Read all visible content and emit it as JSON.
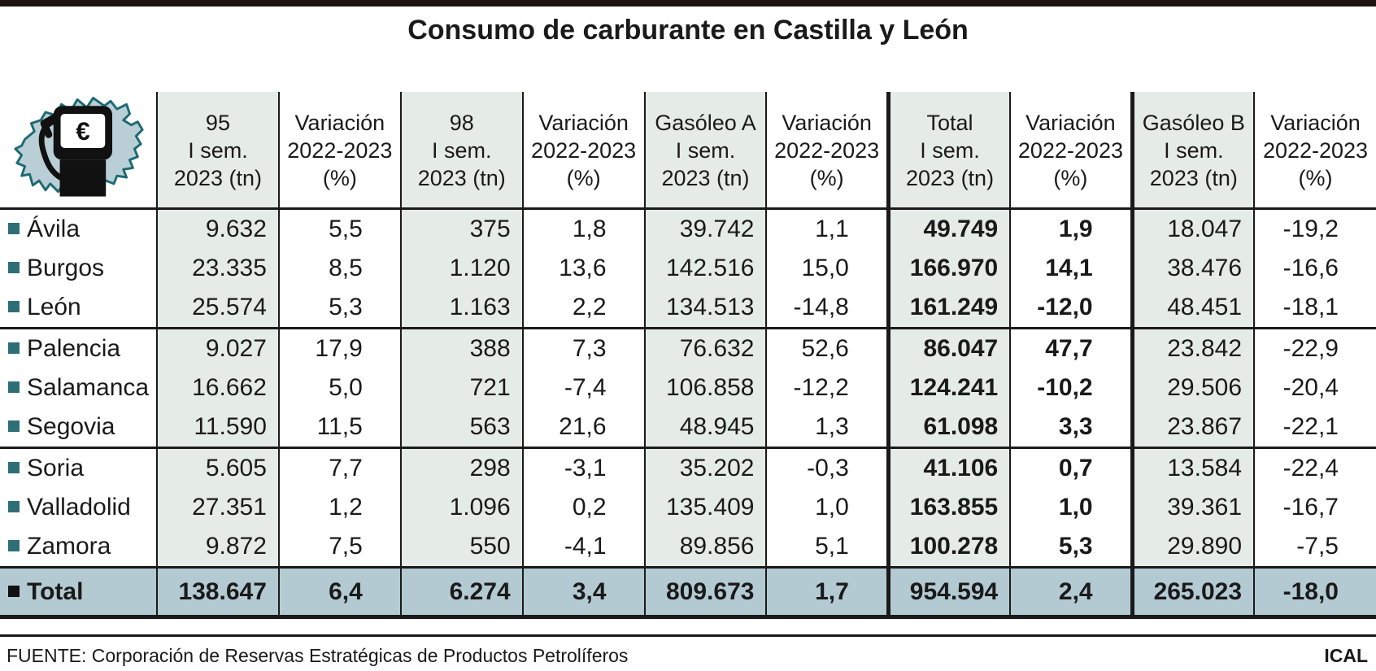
{
  "title": "Consumo de carburante en Castilla y León",
  "icon": {
    "name": "castilla-y-leon-map-fuel-pump",
    "currency_symbol": "€"
  },
  "footer": {
    "source": "FUENTE: Corporación de Reservas Estratégicas de Productos Petrolíferos",
    "credit": "ICAL"
  },
  "colors": {
    "shaded_column": "#e5ebe7",
    "total_row": "#b4cad2",
    "bullet": "#2e6f77",
    "map_fill": "#b9cfd5",
    "map_stroke": "#1d6a74",
    "line": "#1a1a1a",
    "top_bar": "#1b1410"
  },
  "chart_data": {
    "type": "table",
    "title": "Consumo de carburante en Castilla y León",
    "columns": [
      {
        "lines": [
          "",
          "",
          ""
        ],
        "shaded": false
      },
      {
        "lines": [
          "95",
          "I sem.",
          "2023 (tn)"
        ],
        "shaded": true
      },
      {
        "lines": [
          "Variación",
          "2022-2023",
          "(%)"
        ],
        "shaded": false
      },
      {
        "lines": [
          "98",
          "I sem.",
          "2023 (tn)"
        ],
        "shaded": true
      },
      {
        "lines": [
          "Variación",
          "2022-2023",
          "(%)"
        ],
        "shaded": false
      },
      {
        "lines": [
          "Gasóleo A",
          "I sem.",
          "2023 (tn)"
        ],
        "shaded": true
      },
      {
        "lines": [
          "Variación",
          "2022-2023",
          "(%)"
        ],
        "shaded": false
      },
      {
        "lines": [
          "Total",
          "I sem.",
          "2023 (tn)"
        ],
        "shaded": true
      },
      {
        "lines": [
          "Variación",
          "2022-2023",
          "(%)"
        ],
        "shaded": false
      },
      {
        "lines": [
          "Gasóleo B",
          "I sem.",
          "2023 (tn)"
        ],
        "shaded": true
      },
      {
        "lines": [
          "Variación",
          "2022-2023",
          "(%)"
        ],
        "shaded": false
      }
    ],
    "rows": [
      {
        "label": "Ávila",
        "values": [
          "9.632",
          "5,5",
          "375",
          "1,8",
          "39.742",
          "1,1",
          "49.749",
          "1,9",
          "18.047",
          "-19,2"
        ]
      },
      {
        "label": "Burgos",
        "values": [
          "23.335",
          "8,5",
          "1.120",
          "13,6",
          "142.516",
          "15,0",
          "166.970",
          "14,1",
          "38.476",
          "-16,6"
        ]
      },
      {
        "label": "León",
        "values": [
          "25.574",
          "5,3",
          "1.163",
          "2,2",
          "134.513",
          "-14,8",
          "161.249",
          "-12,0",
          "48.451",
          "-18,1"
        ]
      },
      {
        "label": "Palencia",
        "values": [
          "9.027",
          "17,9",
          "388",
          "7,3",
          "76.632",
          "52,6",
          "86.047",
          "47,7",
          "23.842",
          "-22,9"
        ]
      },
      {
        "label": "Salamanca",
        "values": [
          "16.662",
          "5,0",
          "721",
          "-7,4",
          "106.858",
          "-12,2",
          "124.241",
          "-10,2",
          "29.506",
          "-20,4"
        ]
      },
      {
        "label": "Segovia",
        "values": [
          "11.590",
          "11,5",
          "563",
          "21,6",
          "48.945",
          "1,3",
          "61.098",
          "3,3",
          "23.867",
          "-22,1"
        ]
      },
      {
        "label": "Soria",
        "values": [
          "5.605",
          "7,7",
          "298",
          "-3,1",
          "35.202",
          "-0,3",
          "41.106",
          "0,7",
          "13.584",
          "-22,4"
        ]
      },
      {
        "label": "Valladolid",
        "values": [
          "27.351",
          "1,2",
          "1.096",
          "0,2",
          "135.409",
          "1,0",
          "163.855",
          "1,0",
          "39.361",
          "-16,7"
        ]
      },
      {
        "label": "Zamora",
        "values": [
          "9.872",
          "7,5",
          "550",
          "-4,1",
          "89.856",
          "5,1",
          "100.278",
          "5,3",
          "29.890",
          "-7,5"
        ]
      },
      {
        "label": "Total",
        "values": [
          "138.647",
          "6,4",
          "6.274",
          "3,4",
          "809.673",
          "1,7",
          "954.594",
          "2,4",
          "265.023",
          "-18,0"
        ],
        "is_total": true
      }
    ],
    "notes": "Bold columns: Total I sem. 2023 (tn) and its Variación. Row groups of three separated by rules. Shaded columns indices 1,3,5,7,9."
  }
}
